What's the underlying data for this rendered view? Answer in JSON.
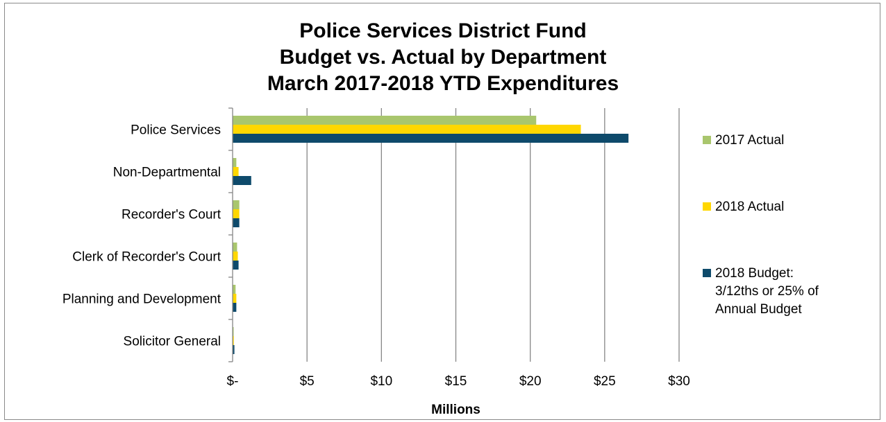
{
  "chart_data": {
    "type": "bar",
    "orientation": "horizontal",
    "title": [
      "Police Services District Fund",
      "Budget vs. Actual by Department",
      "March 2017-2018 YTD Expenditures"
    ],
    "xlabel": "Millions",
    "xlim": [
      0,
      30
    ],
    "x_ticks": [
      0,
      5,
      10,
      15,
      20,
      25,
      30
    ],
    "x_tick_labels": [
      "$-",
      "$5",
      "$10",
      "$15",
      "$20",
      "$25",
      "$30"
    ],
    "categories": [
      "Police Services",
      "Non-Departmental",
      "Recorder's Court",
      "Clerk of Recorder's Court",
      "Planning and Development",
      "Solicitor General"
    ],
    "series": [
      {
        "name": "2017 Actual",
        "color": "#a9c66d",
        "values": [
          20.4,
          0.25,
          0.45,
          0.3,
          0.2,
          0.07
        ]
      },
      {
        "name": "2018 Actual",
        "color": "#ffd700",
        "values": [
          23.4,
          0.4,
          0.45,
          0.35,
          0.25,
          0.08
        ]
      },
      {
        "name": "2018 Budget:\n3/12ths or 25% of\nAnnual Budget",
        "color": "#0e4a6b",
        "values": [
          26.6,
          1.25,
          0.45,
          0.4,
          0.25,
          0.12
        ]
      }
    ],
    "gridlines": true,
    "legend_position": "right"
  }
}
